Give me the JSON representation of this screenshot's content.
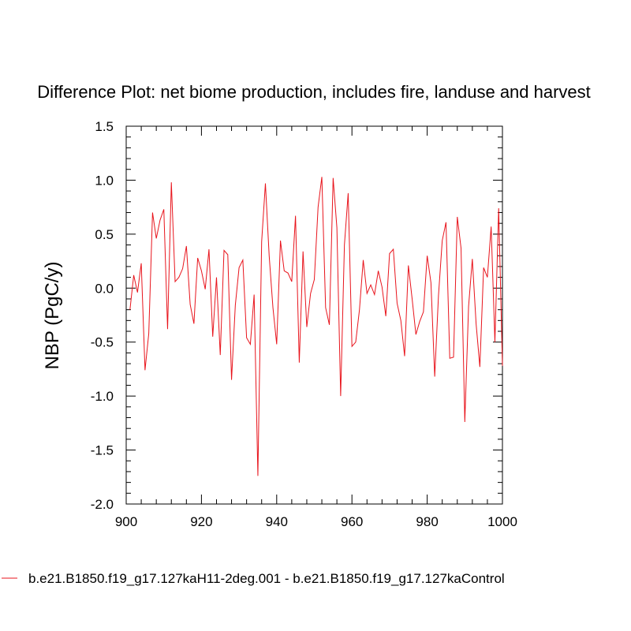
{
  "chart_data": {
    "type": "line",
    "title": "Difference Plot: net biome production, includes fire, landuse and harvest",
    "xlabel": "",
    "ylabel": "NBP  (PgC/y)",
    "xlim": [
      900,
      1000
    ],
    "ylim": [
      -2.0,
      1.5
    ],
    "x_ticks": [
      "900",
      "920",
      "940",
      "960",
      "980",
      "1000"
    ],
    "y_ticks": [
      "1.5",
      "1.0",
      "0.5",
      "0.0",
      "-0.5",
      "-1.0",
      "-1.5",
      "-2.0"
    ],
    "grid": false,
    "legend_position": "bottom",
    "series": [
      {
        "name": "b.e21.B1850.f19_g17.127kaH11-2deg.001 - b.e21.B1850.f19_g17.127kaControl",
        "color": "#e8141c",
        "x": [
          901,
          902,
          903,
          904,
          905,
          906,
          907,
          908,
          909,
          910,
          911,
          912,
          913,
          914,
          915,
          916,
          917,
          918,
          919,
          920,
          921,
          922,
          923,
          924,
          925,
          926,
          927,
          928,
          929,
          930,
          931,
          932,
          933,
          934,
          935,
          936,
          937,
          938,
          939,
          940,
          941,
          942,
          943,
          944,
          945,
          946,
          947,
          948,
          949,
          950,
          951,
          952,
          953,
          954,
          955,
          956,
          957,
          958,
          959,
          960,
          961,
          962,
          963,
          964,
          965,
          966,
          967,
          968,
          969,
          970,
          971,
          972,
          973,
          974,
          975,
          976,
          977,
          978,
          979,
          980,
          981,
          982,
          983,
          984,
          985,
          986,
          987,
          988,
          989,
          990,
          991,
          992,
          993,
          994,
          995,
          996,
          997,
          998,
          999,
          1000
        ],
        "values": [
          -0.2,
          0.12,
          -0.04,
          0.23,
          -0.76,
          -0.42,
          0.7,
          0.46,
          0.63,
          0.73,
          -0.38,
          0.98,
          0.06,
          0.1,
          0.18,
          0.39,
          -0.15,
          -0.33,
          0.28,
          0.16,
          -0.01,
          0.36,
          -0.45,
          0.1,
          -0.62,
          0.35,
          0.31,
          -0.85,
          -0.16,
          0.19,
          0.26,
          -0.46,
          -0.52,
          -0.06,
          -1.74,
          0.43,
          0.97,
          0.3,
          -0.18,
          -0.52,
          0.44,
          0.16,
          0.14,
          0.06,
          0.67,
          -0.69,
          0.34,
          -0.36,
          -0.05,
          0.08,
          0.75,
          1.03,
          -0.18,
          -0.34,
          1.02,
          0.56,
          -1.0,
          0.4,
          0.88,
          -0.54,
          -0.5,
          -0.2,
          0.26,
          -0.05,
          0.03,
          -0.06,
          0.16,
          0.01,
          -0.26,
          0.32,
          0.36,
          -0.14,
          -0.3,
          -0.63,
          0.21,
          -0.1,
          -0.43,
          -0.31,
          -0.22,
          0.3,
          0.05,
          -0.82,
          -0.07,
          0.44,
          0.61,
          -0.65,
          -0.64,
          0.66,
          0.37,
          -1.24,
          -0.17,
          0.27,
          -0.33,
          -0.73,
          0.19,
          0.1,
          0.57,
          -0.5,
          0.74,
          -0.72
        ]
      }
    ]
  }
}
